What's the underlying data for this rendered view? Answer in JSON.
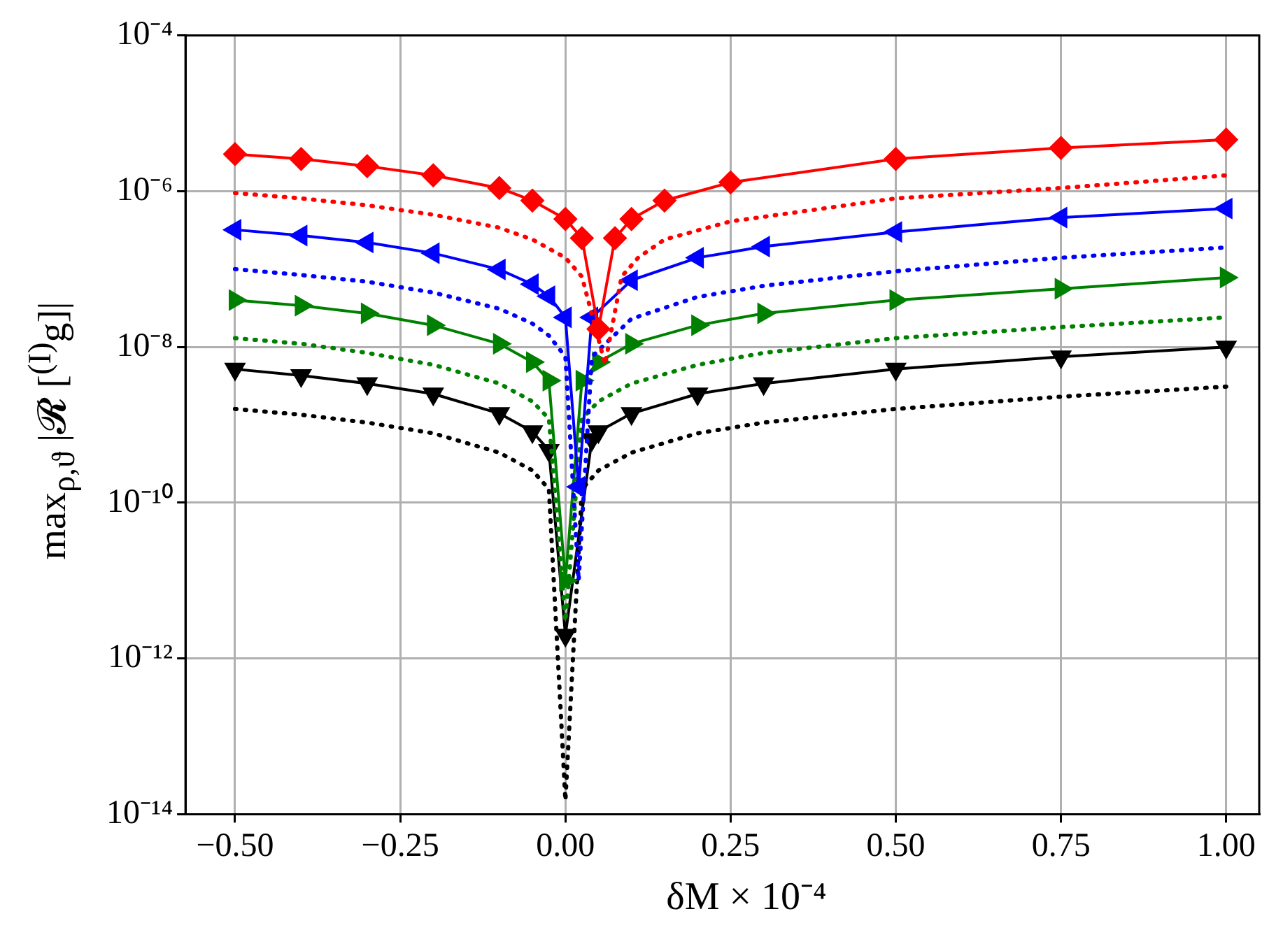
{
  "chart_data": {
    "type": "line",
    "xlabel": "δM × 10⁻⁴",
    "ylabel": "max$_{ρ,ϑ}$ |𝓡 [$^{(I)}$g]|",
    "log": "y",
    "grid": true,
    "legend": false,
    "xlim": [
      -0.575,
      1.05
    ],
    "ylim": [
      1e-14,
      0.0001
    ],
    "xticks": [
      {
        "value": -0.5,
        "label": "−0.50"
      },
      {
        "value": -0.25,
        "label": "−0.25"
      },
      {
        "value": 0,
        "label": "0.00"
      },
      {
        "value": 0.25,
        "label": "0.25"
      },
      {
        "value": 0.5,
        "label": "0.50"
      },
      {
        "value": 0.75,
        "label": "0.75"
      },
      {
        "value": 1,
        "label": "1.00"
      }
    ],
    "yticks": [
      {
        "value": 1e-14,
        "label": "10⁻¹⁴"
      },
      {
        "value": 1e-12,
        "label": "10⁻¹²"
      },
      {
        "value": 1e-10,
        "label": "10⁻¹⁰"
      },
      {
        "value": 1e-08,
        "label": "10⁻⁸"
      },
      {
        "value": 1e-06,
        "label": "10⁻⁶"
      },
      {
        "value": 0.0001,
        "label": "10⁻⁴"
      }
    ],
    "series": [
      {
        "type": "line",
        "color": "#ff0000",
        "marker": "diamond",
        "line_style": "solid",
        "x": [
          -0.5,
          -0.4,
          -0.3,
          -0.2,
          -0.1,
          -0.05,
          0,
          0.025,
          0.05,
          0.075,
          0.1,
          0.15,
          0.25,
          0.5,
          0.75,
          1.0
        ],
        "values": [
          3e-06,
          2.6e-06,
          2.1e-06,
          1.6e-06,
          1.1e-06,
          7.6e-07,
          4.4e-07,
          2.5e-07,
          1.7e-08,
          2.5e-07,
          4.4e-07,
          7.6e-07,
          1.3e-06,
          2.6e-06,
          3.6e-06,
          4.6e-06
        ]
      },
      {
        "type": "line",
        "color": "#ff0000",
        "marker": "none",
        "line_style": "dotted",
        "x": [
          -0.5,
          -0.4,
          -0.3,
          -0.2,
          -0.1,
          -0.05,
          0,
          0.025,
          0.06,
          0.085,
          0.11,
          0.15,
          0.25,
          0.5,
          0.75,
          1.0
        ],
        "values": [
          9.5e-07,
          8.1e-07,
          6.6e-07,
          5e-07,
          3.4e-07,
          2.4e-07,
          1.4e-07,
          8e-08,
          6e-09,
          8e-08,
          1.4e-07,
          2.4e-07,
          4.1e-07,
          8.1e-07,
          1.1e-06,
          1.6e-06
        ]
      },
      {
        "type": "line",
        "color": "#0000ff",
        "marker": "triangle",
        "line_style": "solid",
        "x": [
          -0.5,
          -0.4,
          -0.3,
          -0.2,
          -0.1,
          -0.05,
          -0.025,
          0,
          0.02,
          0.04,
          0.1,
          0.2,
          0.3,
          0.5,
          0.75,
          1.0
        ],
        "values": [
          3.2e-07,
          2.7e-07,
          2.2e-07,
          1.6e-07,
          9.9e-08,
          6.4e-08,
          4.5e-08,
          2.4e-08,
          1.6e-10,
          2.4e-08,
          7.2e-08,
          1.4e-07,
          1.95e-07,
          3e-07,
          4.6e-07,
          6e-07
        ]
      },
      {
        "type": "line",
        "color": "#0000ff",
        "marker": "none",
        "line_style": "dotted",
        "x": [
          -0.5,
          -0.4,
          -0.3,
          -0.2,
          -0.1,
          -0.05,
          -0.025,
          0,
          0.02,
          0.04,
          0.1,
          0.2,
          0.3,
          0.5,
          0.75,
          1.0
        ],
        "values": [
          1e-07,
          8.4e-08,
          6.9e-08,
          5e-08,
          3.1e-08,
          2e-08,
          1.4e-08,
          7.5e-09,
          1e-11,
          7.5e-09,
          2.3e-08,
          4.4e-08,
          6.1e-08,
          9.4e-08,
          1.4e-07,
          1.9e-07
        ]
      },
      {
        "type": "line",
        "color": "#008000",
        "marker": "triangle",
        "line_style": "solid",
        "x": [
          -0.5,
          -0.4,
          -0.3,
          -0.2,
          -0.1,
          -0.05,
          -0.025,
          0,
          0.025,
          0.05,
          0.1,
          0.2,
          0.3,
          0.5,
          0.75,
          1.0
        ],
        "values": [
          4e-08,
          3.4e-08,
          2.7e-08,
          1.9e-08,
          1.1e-08,
          6.4e-09,
          3.7e-09,
          1e-11,
          3.7e-09,
          6.4e-09,
          1.1e-08,
          1.9e-08,
          2.7e-08,
          4e-08,
          5.6e-08,
          7.8e-08
        ]
      },
      {
        "type": "line",
        "color": "#008000",
        "marker": "none",
        "line_style": "dotted",
        "x": [
          -0.5,
          -0.4,
          -0.3,
          -0.2,
          -0.1,
          -0.05,
          -0.025,
          0,
          0.025,
          0.05,
          0.1,
          0.2,
          0.3,
          0.5,
          0.75,
          1.0
        ],
        "values": [
          1.3e-08,
          1.1e-08,
          8.4e-09,
          5.9e-09,
          3.4e-09,
          2e-09,
          1.2e-09,
          3e-12,
          1.2e-09,
          2e-09,
          3.4e-09,
          5.9e-09,
          8.4e-09,
          1.3e-08,
          1.8e-08,
          2.4e-08
        ]
      },
      {
        "type": "line",
        "color": "#000000",
        "marker": "triangle",
        "line_style": "solid",
        "x": [
          -0.5,
          -0.4,
          -0.3,
          -0.2,
          -0.1,
          -0.05,
          -0.025,
          0,
          0.04,
          0.05,
          0.1,
          0.2,
          0.3,
          0.5,
          0.75,
          1.0
        ],
        "values": [
          5.2e-09,
          4.3e-09,
          3.4e-09,
          2.5e-09,
          1.4e-09,
          8.2e-10,
          4.7e-10,
          2e-12,
          6.5e-10,
          8.2e-10,
          1.4e-09,
          2.5e-09,
          3.4e-09,
          5.2e-09,
          7.5e-09,
          1e-08
        ]
      },
      {
        "type": "line",
        "color": "#000000",
        "marker": "none",
        "line_style": "dotted",
        "x": [
          -0.5,
          -0.4,
          -0.3,
          -0.2,
          -0.1,
          -0.05,
          -0.025,
          0,
          0.025,
          0.05,
          0.1,
          0.2,
          0.3,
          0.5,
          0.75,
          1.0
        ],
        "values": [
          1.6e-09,
          1.35e-09,
          1.07e-09,
          7.8e-10,
          4.4e-10,
          2.6e-10,
          1.5e-10,
          1.5e-14,
          1.5e-10,
          2.6e-10,
          4.4e-10,
          7.8e-10,
          1.07e-09,
          1.6e-09,
          2.3e-09,
          3.1e-09
        ]
      }
    ]
  }
}
